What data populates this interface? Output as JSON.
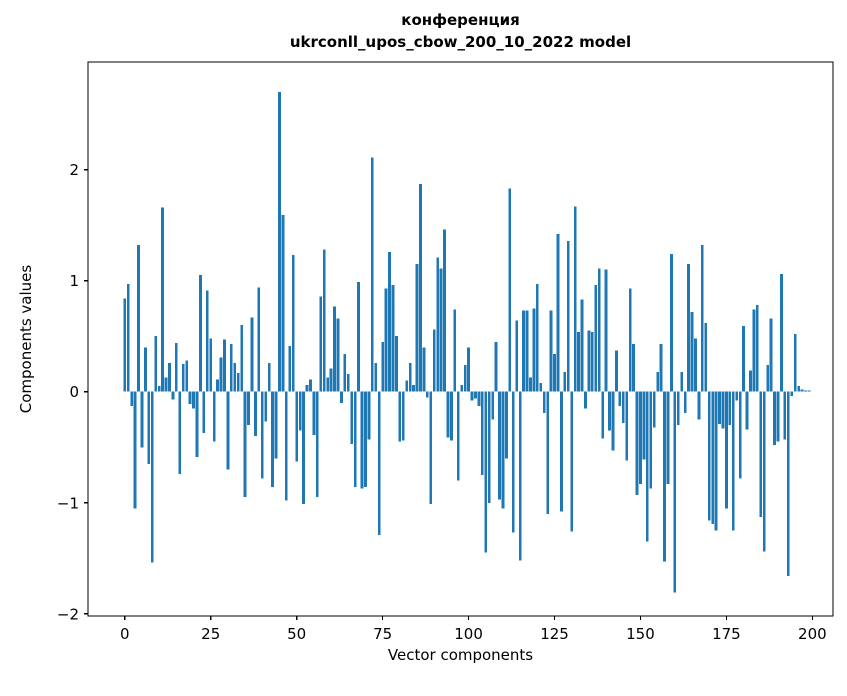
{
  "figure": {
    "title_line1": "конференция",
    "title_line2": "ukrconll_upos_cbow_200_10_2022 model",
    "xlabel": "Vector components",
    "ylabel": "Components values"
  },
  "chart_data": {
    "type": "bar",
    "title": "конференция\nukrconll_upos_cbow_200_10_2022 model",
    "xlabel": "Vector components",
    "ylabel": "Components values",
    "bar_color": "#1f77b4",
    "axis_color": "#000000",
    "background_color": "#ffffff",
    "grid": false,
    "legend": null,
    "bar_width_fraction": 0.8,
    "x_start": 0,
    "x_ticks": [
      0,
      25,
      50,
      75,
      100,
      125,
      150,
      175,
      200
    ],
    "y_ticks": [
      -2,
      -1,
      0,
      1,
      2
    ],
    "y_tick_labels": [
      "−2",
      "−1",
      "0",
      "1",
      "2"
    ],
    "xlim": [
      -10.7,
      206.0
    ],
    "ylim": [
      -2.02,
      2.97
    ],
    "values": [
      0.84,
      0.97,
      -0.13,
      -1.05,
      1.32,
      -0.5,
      0.4,
      -0.65,
      -1.54,
      0.5,
      0.05,
      1.66,
      0.13,
      0.26,
      -0.07,
      0.44,
      -0.74,
      0.25,
      0.28,
      -0.11,
      -0.15,
      -0.59,
      1.05,
      -0.37,
      0.91,
      0.48,
      -0.45,
      0.11,
      0.31,
      0.47,
      -0.7,
      0.43,
      0.26,
      0.17,
      0.6,
      -0.95,
      -0.3,
      0.67,
      -0.4,
      0.94,
      -0.78,
      -0.27,
      0.26,
      -0.86,
      -0.6,
      2.7,
      1.59,
      -0.98,
      0.41,
      1.23,
      -0.63,
      -0.35,
      -1.01,
      0.06,
      0.11,
      -0.39,
      -0.95,
      0.86,
      1.28,
      0.13,
      0.21,
      0.77,
      0.66,
      -0.1,
      0.34,
      0.16,
      -0.47,
      -0.86,
      0.99,
      -0.87,
      -0.86,
      -0.43,
      2.11,
      0.26,
      -1.29,
      0.45,
      0.93,
      1.26,
      0.96,
      0.5,
      -0.45,
      -0.44,
      0.1,
      0.26,
      0.06,
      1.15,
      1.87,
      0.4,
      -0.05,
      -1.01,
      0.56,
      1.21,
      1.11,
      1.46,
      -0.41,
      -0.44,
      0.74,
      -0.8,
      0.06,
      0.24,
      0.4,
      -0.08,
      -0.06,
      -0.13,
      -0.75,
      -1.45,
      -1.0,
      -0.25,
      0.45,
      -0.97,
      -1.05,
      -0.6,
      1.83,
      -1.27,
      0.64,
      -1.52,
      0.73,
      0.73,
      0.13,
      0.75,
      0.97,
      0.08,
      -0.19,
      -1.1,
      0.73,
      0.34,
      1.42,
      -1.08,
      0.18,
      1.36,
      -1.26,
      1.67,
      0.54,
      0.83,
      -0.15,
      0.55,
      0.54,
      0.96,
      1.11,
      -0.42,
      1.1,
      -0.35,
      -0.53,
      0.37,
      -0.13,
      -0.28,
      -0.62,
      0.93,
      0.43,
      -0.93,
      -0.83,
      -0.61,
      -1.35,
      -0.87,
      -0.32,
      0.18,
      0.43,
      -1.53,
      -0.83,
      1.24,
      -1.81,
      -0.3,
      0.18,
      -0.19,
      1.15,
      0.72,
      0.48,
      -0.25,
      1.32,
      0.62,
      -1.16,
      -1.19,
      -1.25,
      -0.29,
      -0.33,
      -1.05,
      -0.3,
      -1.25,
      -0.08,
      -0.78,
      0.59,
      -0.34,
      0.19,
      0.74,
      0.78,
      -1.13,
      -1.44,
      0.24,
      0.66,
      -0.48,
      -0.45,
      1.06,
      -0.43,
      -1.66,
      -0.04,
      0.52,
      0.05,
      0.02,
      0.01,
      0.01
    ]
  }
}
